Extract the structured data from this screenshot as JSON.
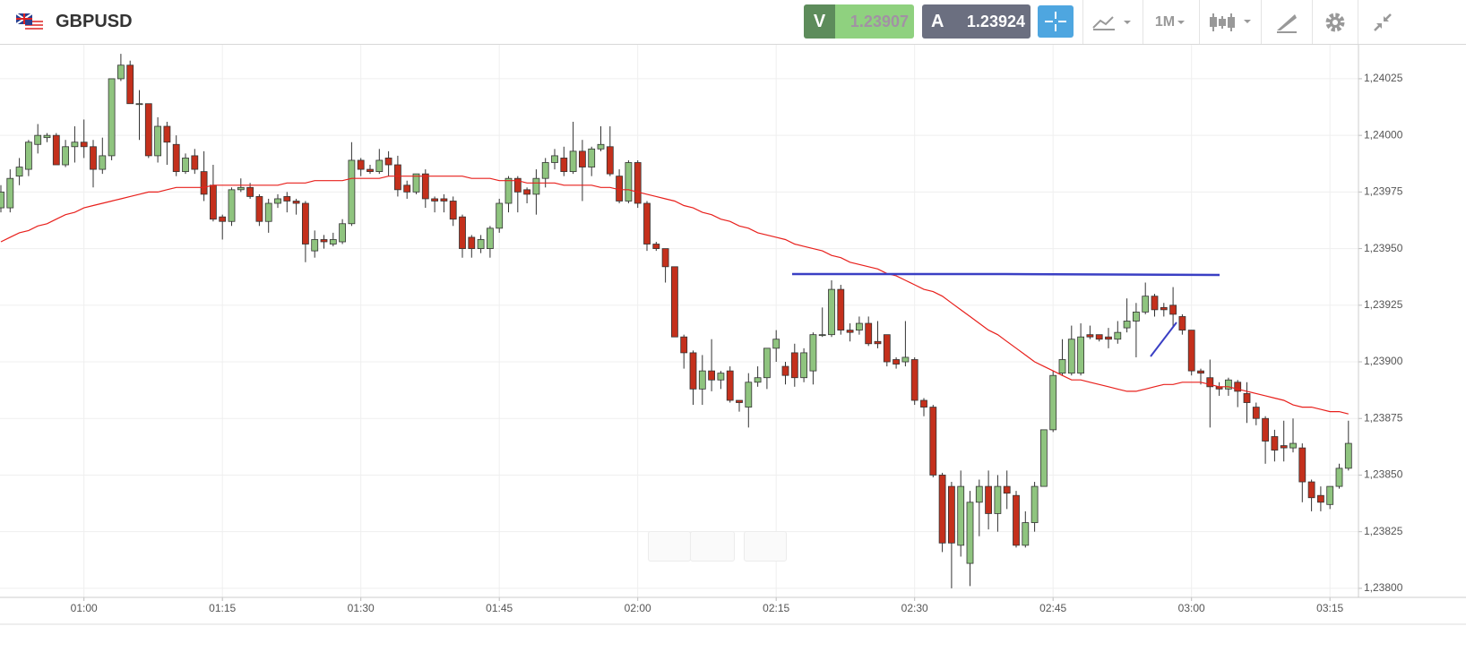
{
  "header": {
    "symbol": "GBPUSD",
    "sell": {
      "letter": "V",
      "price": "1.23907"
    },
    "buy": {
      "letter": "A",
      "price": "1.23924"
    },
    "timeframe": "1M"
  },
  "chart_data": {
    "type": "candlestick",
    "categories": [
      null,
      null,
      null,
      null,
      null,
      null,
      null,
      null,
      null,
      "01:00",
      null,
      null,
      null,
      null,
      null,
      null,
      null,
      null,
      null,
      null,
      null,
      null,
      null,
      null,
      "01:15",
      null,
      null,
      null,
      null,
      null,
      null,
      null,
      null,
      null,
      null,
      null,
      null,
      null,
      null,
      "01:30",
      null,
      null,
      null,
      null,
      null,
      null,
      null,
      null,
      null,
      null,
      null,
      null,
      null,
      null,
      "01:45",
      null,
      null,
      null,
      null,
      null,
      null,
      null,
      null,
      null,
      null,
      null,
      null,
      null,
      null,
      "02:00",
      null,
      null,
      null,
      null,
      null,
      null,
      null,
      null,
      null,
      null,
      null,
      null,
      null,
      null,
      "02:15",
      null,
      null,
      null,
      null,
      null,
      null,
      null,
      null,
      null,
      null,
      null,
      null,
      null,
      null,
      "02:30",
      null,
      null,
      null,
      null,
      null,
      null,
      null,
      null,
      null,
      null,
      null,
      null,
      null,
      null,
      "02:45",
      null,
      null,
      null,
      null,
      null,
      null,
      null,
      null,
      null,
      null,
      null,
      null,
      null,
      null,
      "03:00",
      null,
      null,
      null,
      null,
      null,
      null,
      null,
      null,
      null,
      null,
      null,
      null,
      null,
      null,
      "03:15",
      null,
      null
    ],
    "open": [
      1.23968,
      1.23968,
      1.23982,
      1.23985,
      1.23996,
      1.23999,
      1.24,
      1.23987,
      1.23995,
      1.23997,
      1.23995,
      1.23985,
      1.23991,
      1.24025,
      1.24031,
      1.24014,
      1.24014,
      1.23991,
      1.24004,
      1.23996,
      1.23984,
      1.23991,
      1.23984,
      1.23978,
      1.23964,
      1.23962,
      1.23976,
      1.23977,
      1.23973,
      1.23962,
      1.2397,
      1.23973,
      1.23971,
      1.2397,
      1.23949,
      1.23954,
      1.23952,
      1.23953,
      1.23961,
      1.23989,
      1.23985,
      1.23984,
      1.2399,
      1.23987,
      1.23978,
      1.23975,
      1.23983,
      1.23972,
      1.23972,
      1.23971,
      1.23964,
      1.23955,
      1.2395,
      1.2395,
      1.23959,
      1.2397,
      1.23981,
      1.23976,
      1.23974,
      1.23981,
      1.23988,
      1.2399,
      1.23984,
      1.23993,
      1.23986,
      1.23994,
      1.23995,
      1.23982,
      1.23971,
      1.23988,
      1.2397,
      1.23952,
      1.2395,
      1.23942,
      1.23911,
      1.23904,
      1.23888,
      1.23896,
      1.23892,
      1.23896,
      1.23883,
      1.2388,
      1.23891,
      1.23893,
      1.23906,
      1.23898,
      1.23904,
      1.23893,
      1.23896,
      1.23912,
      1.23912,
      1.23932,
      1.23914,
      1.23914,
      1.23917,
      1.23909,
      1.23912,
      1.23901,
      1.239,
      1.23901,
      1.23883,
      1.2388,
      1.2385,
      1.23845,
      1.23819,
      1.23811,
      1.23838,
      1.23845,
      1.23833,
      1.23845,
      1.23841,
      1.23819,
      1.23829,
      1.23845,
      1.2387,
      1.23895,
      1.23895,
      1.23895,
      1.23912,
      1.23912,
      1.23911,
      1.2391,
      1.23915,
      1.23918,
      1.23922,
      1.23929,
      1.23924,
      1.23925,
      1.2392,
      1.23914,
      1.23896,
      1.23893,
      1.23889,
      1.23888,
      1.23891,
      1.23886,
      1.2388,
      1.23875,
      1.23867,
      1.23863,
      1.23862,
      1.23862,
      1.23847,
      1.23841,
      1.23837,
      1.23845,
      1.23853
    ],
    "high": [
      1.23978,
      1.23985,
      1.2399,
      1.23998,
      1.24005,
      1.24001,
      1.24001,
      1.23998,
      1.24004,
      1.24007,
      1.23998,
      1.23999,
      1.24025,
      1.24036,
      1.24033,
      1.2402,
      1.24014,
      1.24008,
      1.24006,
      1.24,
      1.23992,
      1.23994,
      1.23993,
      1.23987,
      1.23965,
      1.23977,
      1.23981,
      1.23979,
      1.23974,
      1.23972,
      1.23974,
      1.23975,
      1.23972,
      1.23971,
      1.23958,
      1.23956,
      1.23957,
      1.23963,
      1.23997,
      1.2399,
      1.23987,
      1.23994,
      1.23993,
      1.23991,
      1.2398,
      1.23983,
      1.23985,
      1.23973,
      1.23974,
      1.23973,
      1.23965,
      1.23956,
      1.23956,
      1.2396,
      1.23972,
      1.23982,
      1.23982,
      1.23977,
      1.23985,
      1.2399,
      1.23994,
      1.23995,
      1.24006,
      1.23998,
      1.23995,
      1.24004,
      1.24004,
      1.23985,
      1.23989,
      1.23989,
      1.23971,
      1.23953,
      1.2395,
      1.23942,
      1.23912,
      1.23905,
      1.23903,
      1.2391,
      1.23896,
      1.23898,
      1.23883,
      1.23895,
      1.23898,
      1.23906,
      1.23914,
      1.239,
      1.23908,
      1.23906,
      1.23913,
      1.23924,
      1.23936,
      1.23934,
      1.23917,
      1.2392,
      1.2392,
      1.23918,
      1.23912,
      1.23902,
      1.23918,
      1.23902,
      1.23884,
      1.23881,
      1.23851,
      1.23847,
      1.23852,
      1.23843,
      1.23848,
      1.23852,
      1.2385,
      1.23852,
      1.23843,
      1.23834,
      1.23847,
      1.2387,
      1.23896,
      1.2391,
      1.23916,
      1.23917,
      1.23916,
      1.23912,
      1.23915,
      1.23918,
      1.23928,
      1.23926,
      1.23935,
      1.2393,
      1.23926,
      1.23933,
      1.23921,
      1.23914,
      1.23897,
      1.23901,
      1.23891,
      1.23893,
      1.23892,
      1.23891,
      1.23882,
      1.23876,
      1.2387,
      1.23874,
      1.23875,
      1.23864,
      1.23848,
      1.23845,
      1.23845,
      1.23855,
      1.23874
    ],
    "low": [
      1.23966,
      1.23966,
      1.23978,
      1.23982,
      1.23992,
      1.23997,
      1.23987,
      1.23986,
      1.23988,
      1.2399,
      1.23977,
      1.23983,
      1.23989,
      1.24024,
      1.24014,
      1.23998,
      1.2399,
      1.23988,
      1.23987,
      1.23982,
      1.23983,
      1.23983,
      1.23971,
      1.23962,
      1.23954,
      1.2396,
      1.23975,
      1.23972,
      1.2396,
      1.23957,
      1.23968,
      1.23966,
      1.23965,
      1.23944,
      1.23946,
      1.2395,
      1.23951,
      1.23952,
      1.2396,
      1.23982,
      1.23983,
      1.23983,
      1.23982,
      1.23973,
      1.23972,
      1.23974,
      1.23968,
      1.23966,
      1.23966,
      1.2396,
      1.23946,
      1.23946,
      1.23948,
      1.23946,
      1.23957,
      1.23966,
      1.23966,
      1.2397,
      1.23965,
      1.23977,
      1.23985,
      1.23982,
      1.23983,
      1.23971,
      1.23982,
      1.23993,
      1.23982,
      1.2397,
      1.2397,
      1.23968,
      1.23949,
      1.23949,
      1.23935,
      1.23911,
      1.23897,
      1.23881,
      1.23881,
      1.23887,
      1.23888,
      1.23882,
      1.23878,
      1.23871,
      1.23889,
      1.23888,
      1.239,
      1.2389,
      1.23889,
      1.23891,
      1.2389,
      1.23911,
      1.23911,
      1.23912,
      1.23909,
      1.23912,
      1.23907,
      1.23906,
      1.23898,
      1.23897,
      1.23898,
      1.23881,
      1.23876,
      1.23849,
      1.23816,
      1.238,
      1.23814,
      1.23801,
      1.23823,
      1.23826,
      1.23825,
      1.23835,
      1.23818,
      1.23818,
      1.23825,
      1.23845,
      1.23869,
      1.23894,
      1.23894,
      1.23894,
      1.2391,
      1.23909,
      1.23906,
      1.23908,
      1.23913,
      1.23902,
      1.23921,
      1.2392,
      1.2392,
      1.23915,
      1.23912,
      1.23894,
      1.2389,
      1.23871,
      1.23885,
      1.23885,
      1.2388,
      1.23873,
      1.23872,
      1.23855,
      1.23856,
      1.23856,
      1.2386,
      1.23838,
      1.23834,
      1.23834,
      1.23835,
      1.23844,
      1.23852
    ],
    "close": [
      1.23975,
      1.23981,
      1.23986,
      1.23997,
      1.24,
      1.24,
      1.23987,
      1.23995,
      1.23997,
      1.23995,
      1.23985,
      1.23991,
      1.24025,
      1.24031,
      1.24014,
      1.24014,
      1.23991,
      1.24004,
      1.23997,
      1.23984,
      1.2399,
      1.23985,
      1.23974,
      1.23963,
      1.23962,
      1.23976,
      1.23977,
      1.23973,
      1.23962,
      1.2397,
      1.23972,
      1.23971,
      1.2397,
      1.23952,
      1.23954,
      1.23953,
      1.23954,
      1.23961,
      1.23989,
      1.23985,
      1.23984,
      1.23989,
      1.23987,
      1.23976,
      1.23975,
      1.23983,
      1.23972,
      1.23971,
      1.23971,
      1.23963,
      1.2395,
      1.2395,
      1.23954,
      1.23959,
      1.2397,
      1.23981,
      1.23975,
      1.23974,
      1.23981,
      1.23988,
      1.23991,
      1.23984,
      1.23993,
      1.23986,
      1.23994,
      1.23996,
      1.23983,
      1.23971,
      1.23988,
      1.2397,
      1.23952,
      1.2395,
      1.23942,
      1.23911,
      1.23904,
      1.23888,
      1.23896,
      1.23892,
      1.23895,
      1.23883,
      1.23882,
      1.23891,
      1.23893,
      1.23906,
      1.2391,
      1.23894,
      1.23893,
      1.23904,
      1.23912,
      1.23912,
      1.23932,
      1.23914,
      1.23913,
      1.23917,
      1.23908,
      1.23908,
      1.239,
      1.23899,
      1.23902,
      1.23883,
      1.2388,
      1.2385,
      1.2382,
      1.2382,
      1.23845,
      1.23838,
      1.23845,
      1.23833,
      1.23845,
      1.23842,
      1.23819,
      1.23829,
      1.23845,
      1.2387,
      1.23894,
      1.23901,
      1.2391,
      1.23911,
      1.23911,
      1.2391,
      1.2391,
      1.23913,
      1.23918,
      1.23922,
      1.23929,
      1.23923,
      1.23923,
      1.23921,
      1.23914,
      1.23896,
      1.23895,
      1.23889,
      1.23888,
      1.23892,
      1.23887,
      1.23882,
      1.23875,
      1.23865,
      1.23861,
      1.23862,
      1.23864,
      1.23847,
      1.2384,
      1.23838,
      1.23845,
      1.23853,
      1.23864
    ],
    "up_color": "#8fc47f",
    "down_color": "#c4301c",
    "line": {
      "color": "#e8201c",
      "values": [
        1.23953,
        1.23955,
        1.23957,
        1.23958,
        1.2396,
        1.23961,
        1.23963,
        1.23965,
        1.23966,
        1.23968,
        1.23969,
        1.2397,
        1.23971,
        1.23972,
        1.23973,
        1.23974,
        1.23975,
        1.23975,
        1.23976,
        1.23977,
        1.23977,
        1.23977,
        1.23977,
        1.23978,
        1.23978,
        1.23978,
        1.23978,
        1.23978,
        1.23978,
        1.23978,
        1.23978,
        1.23979,
        1.23979,
        1.23979,
        1.2398,
        1.2398,
        1.2398,
        1.2398,
        1.23981,
        1.23981,
        1.23981,
        1.23981,
        1.23982,
        1.23982,
        1.23982,
        1.23982,
        1.23982,
        1.23982,
        1.23982,
        1.23982,
        1.23982,
        1.23981,
        1.23981,
        1.23981,
        1.2398,
        1.2398,
        1.2398,
        1.23979,
        1.23979,
        1.23979,
        1.23979,
        1.23978,
        1.23978,
        1.23978,
        1.23978,
        1.23977,
        1.23977,
        1.23976,
        1.23976,
        1.23975,
        1.23974,
        1.23973,
        1.23972,
        1.23971,
        1.23969,
        1.23968,
        1.23966,
        1.23965,
        1.23963,
        1.23962,
        1.2396,
        1.23959,
        1.23957,
        1.23956,
        1.23955,
        1.23954,
        1.23952,
        1.23951,
        1.2395,
        1.23949,
        1.23947,
        1.23946,
        1.23944,
        1.23943,
        1.23942,
        1.23941,
        1.23939,
        1.23938,
        1.23936,
        1.23934,
        1.23932,
        1.23931,
        1.23929,
        1.23926,
        1.23923,
        1.2392,
        1.23917,
        1.23914,
        1.23912,
        1.23909,
        1.23906,
        1.23903,
        1.239,
        1.23898,
        1.23896,
        1.23894,
        1.23892,
        1.23892,
        1.23891,
        1.2389,
        1.23889,
        1.23888,
        1.23887,
        1.23887,
        1.23888,
        1.23889,
        1.2389,
        1.2389,
        1.23891,
        1.23891,
        1.23891,
        1.2389,
        1.23889,
        1.23889,
        1.23888,
        1.23887,
        1.23886,
        1.23885,
        1.23884,
        1.23883,
        1.23881,
        1.2388,
        1.2388,
        1.23879,
        1.23878,
        1.23878,
        1.23877
      ]
    },
    "ylim": [
      1.23796,
      1.2404
    ],
    "yticks": [
      {
        "value": 1.24025,
        "label": "1,24025"
      },
      {
        "value": 1.24,
        "label": "1,24000"
      },
      {
        "value": 1.23975,
        "label": "1,23975"
      },
      {
        "value": 1.2395,
        "label": "1,23950"
      },
      {
        "value": 1.23925,
        "label": "1,23925"
      },
      {
        "value": 1.239,
        "label": "1,23900"
      },
      {
        "value": 1.23875,
        "label": "1,23875"
      },
      {
        "value": 1.2385,
        "label": "1,23850"
      },
      {
        "value": 1.23825,
        "label": "1,23825"
      },
      {
        "value": 1.238,
        "label": "1,23800"
      }
    ],
    "grid": true
  }
}
